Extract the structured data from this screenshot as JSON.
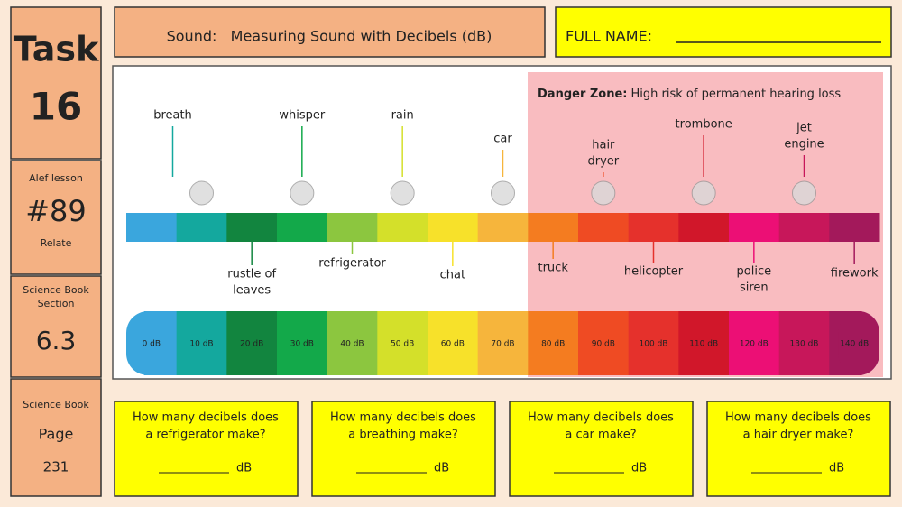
{
  "left_panel": {
    "task": {
      "label": "Task",
      "number": "16"
    },
    "lesson": {
      "label": "Alef lesson",
      "number": "#89",
      "note": "Relate"
    },
    "section": {
      "label": [
        "Science Book",
        "Section"
      ],
      "number": "6.3"
    },
    "page": {
      "label": "Science Book",
      "sub": "Page",
      "number": "231"
    }
  },
  "header": {
    "title": "Sound:   Measuring Sound with Decibels (dB)",
    "name_label": "FULL NAME:"
  },
  "danger_zone": {
    "label": "Danger Zone:",
    "text": "High risk of permanent hearing loss"
  },
  "scale": [
    "0 dB",
    "10 dB",
    "20 dB",
    "30 dB",
    "40 dB",
    "50 dB",
    "60 dB",
    "70 dB",
    "80 dB",
    "90 dB",
    "100 dB",
    "110 dB",
    "120 dB",
    "130 dB",
    "140 dB"
  ],
  "sources_above": [
    {
      "lines": [
        "breath"
      ],
      "level": 1
    },
    {
      "lines": [
        "whisper"
      ],
      "level": 3
    },
    {
      "lines": [
        "rain"
      ],
      "level": 5
    },
    {
      "lines": [
        "car"
      ],
      "level": 7
    },
    {
      "lines": [
        "hair",
        "dryer"
      ],
      "level": 9
    },
    {
      "lines": [
        "trombone"
      ],
      "level": 11
    },
    {
      "lines": [
        "jet",
        "engine"
      ],
      "level": 13
    }
  ],
  "sources_below": [
    {
      "lines": [
        "rustle of",
        "leaves"
      ],
      "level": 2
    },
    {
      "lines": [
        "refrigerator"
      ],
      "level": 4
    },
    {
      "lines": [
        "chat"
      ],
      "level": 6
    },
    {
      "lines": [
        "truck"
      ],
      "level": 8
    },
    {
      "lines": [
        "helicopter"
      ],
      "level": 10
    },
    {
      "lines": [
        "police",
        "siren"
      ],
      "level": 12
    },
    {
      "lines": [
        "firework"
      ],
      "level": 14
    }
  ],
  "questions": [
    {
      "lines": [
        "How many decibels does",
        "a refrigerator make?"
      ],
      "unit": "dB"
    },
    {
      "lines": [
        "How many decibels does",
        "a breathing make?"
      ],
      "unit": "dB"
    },
    {
      "lines": [
        "How many decibels does",
        "a car make?"
      ],
      "unit": "dB"
    },
    {
      "lines": [
        "How many decibels does",
        "a hair dryer make?"
      ],
      "unit": "dB"
    }
  ]
}
